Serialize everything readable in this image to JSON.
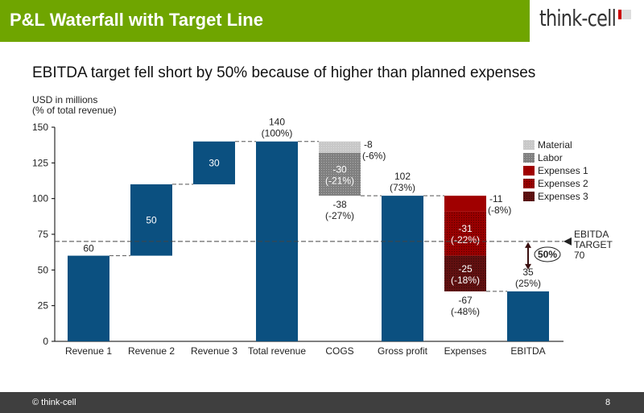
{
  "header": {
    "title": "P&L Waterfall with Target Line",
    "logo": "think-cell"
  },
  "subtitle": "EBITDA target fell short by 50% because of higher than planned expenses",
  "footer": {
    "copyright": "© think-cell",
    "page": "8"
  },
  "colors": {
    "header": "#6fa500",
    "bar": "#0b5080",
    "material": "#c8c8c8",
    "labor": "#808080",
    "expenses1": "#a00000",
    "expenses2": "#980000",
    "expenses3": "#601010"
  },
  "chart_data": {
    "type": "waterfall",
    "ylabel": "USD in millions",
    "ylabel2": "(% of total revenue)",
    "ylim": [
      0,
      150
    ],
    "yticks": [
      0,
      25,
      50,
      75,
      100,
      125,
      150
    ],
    "categories": [
      "Revenue 1",
      "Revenue 2",
      "Revenue 3",
      "Total revenue",
      "COGS",
      "Gross profit",
      "Expenses",
      "EBITDA"
    ],
    "bars": [
      {
        "category": "Revenue 1",
        "start": 0,
        "end": 60,
        "label": "60"
      },
      {
        "category": "Revenue 2",
        "start": 60,
        "end": 110,
        "label": "50"
      },
      {
        "category": "Revenue 3",
        "start": 110,
        "end": 140,
        "label": "30"
      },
      {
        "category": "Total revenue",
        "start": 0,
        "end": 140,
        "label": "140",
        "label2": "(100%)"
      },
      {
        "category": "COGS",
        "total_label": "-38",
        "total_label2": "(-27%)",
        "segments": [
          {
            "series": "Material",
            "start": 132,
            "end": 140,
            "label": "-8",
            "label2": "(-6%)"
          },
          {
            "series": "Labor",
            "start": 102,
            "end": 132,
            "label": "-30",
            "label2": "(-21%)"
          }
        ]
      },
      {
        "category": "Gross profit",
        "start": 0,
        "end": 102,
        "label": "102",
        "label2": "(73%)"
      },
      {
        "category": "Expenses",
        "total_label": "-67",
        "total_label2": "(-48%)",
        "segments": [
          {
            "series": "Expenses 1",
            "start": 91,
            "end": 102,
            "label": "-11",
            "label2": "(-8%)"
          },
          {
            "series": "Expenses 2",
            "start": 60,
            "end": 91,
            "label": "-31",
            "label2": "(-22%)"
          },
          {
            "series": "Expenses 3",
            "start": 35,
            "end": 60,
            "label": "-25",
            "label2": "(-18%)"
          }
        ]
      },
      {
        "category": "EBITDA",
        "start": 0,
        "end": 35,
        "label": "35",
        "label2": "(25%)"
      }
    ],
    "legend": [
      "Material",
      "Labor",
      "Expenses 1",
      "Expenses 2",
      "Expenses 3"
    ],
    "legend_position": "top-right",
    "target": {
      "value": 70,
      "label": [
        "EBITDA",
        "TARGET",
        "70"
      ],
      "gap_label": "50%"
    }
  }
}
